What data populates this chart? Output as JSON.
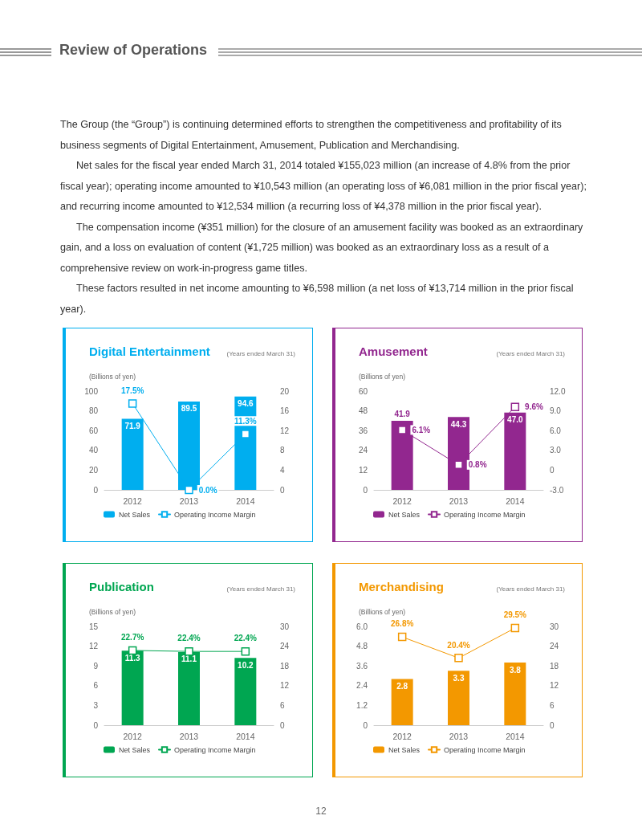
{
  "chart_data": [
    {
      "type": "bar",
      "title": "Digital Entertainment",
      "subtitle": "(Years ended March 31)",
      "ylabel": "(Billions of yen)",
      "annotations": [
        "Review of Operations",
        "The Group (the “Group”) is continuing determined efforts to strengthen the competitiveness and profitability of its business segments of Digital Entertainment, Amusement, Publication and Merchandising.",
        "Net sales for the fiscal year ended March 31, 2014 totaled ¥155,023 million (an increase of 4.8% from the prior fiscal year); operating income amounted to ¥10,543 million (an operating loss of ¥6,081 million in the prior fiscal year); and recurring income amounted to ¥12,534 million (a recurring loss of ¥4,378 million in the prior fiscal year).",
        "The compensation income (¥351 million) for the closure of an amusement facility was booked as an extraordinary gain, and a loss on evaluation of content (¥1,725 million) was booked as an extraordinary loss as a result of a comprehensive review on work-in-progress game titles.",
        "These factors resulted in net income amounting to ¥6,598 million (a net loss of ¥13,714 million in the prior fiscal year)."
      ],
      "categories": [
        "2012",
        "2013",
        "2014"
      ],
      "series": [
        {
          "name": "Net Sales",
          "color": "#00aeef",
          "values": [
            71.9,
            89.5,
            94.6
          ],
          "value_labels": [
            "71.9",
            "89.5",
            "94.6"
          ]
        },
        {
          "name": "Operating Income Margin",
          "type": "line",
          "axis": "y2",
          "color": "#00aeef",
          "values": [
            17.5,
            0.0,
            11.3
          ],
          "value_labels": [
            "17.5%",
            "0.0%",
            "11.3%"
          ]
        }
      ],
      "ylim": [
        0,
        100
      ],
      "yticks": [
        0,
        20,
        40,
        60,
        80,
        100
      ],
      "y2lim": [
        0,
        20
      ],
      "y2ticks": [
        0,
        4,
        8,
        12,
        16,
        20
      ],
      "legend": "bottom left",
      "marker": "square",
      "line_style": "solid"
    },
    {
      "type": "bar",
      "title": "Amusement",
      "subtitle": "(Years ended March 31)",
      "ylabel": "(Billions of yen)",
      "categories": [
        "2012",
        "2013",
        "2014"
      ],
      "series": [
        {
          "name": "Net Sales",
          "color": "#92278f",
          "values": [
            41.9,
            44.3,
            47.0
          ],
          "value_labels": [
            "41.9",
            "44.3",
            "47.0"
          ]
        },
        {
          "name": "Operating Income Margin",
          "type": "line",
          "axis": "y2",
          "color": "#92278f",
          "values": [
            6.1,
            0.8,
            9.6
          ],
          "value_labels": [
            "6.1%",
            "0.8%",
            "9.6%"
          ]
        }
      ],
      "ylim": [
        0,
        60
      ],
      "yticks": [
        0,
        12,
        24,
        36,
        48,
        60
      ],
      "y2lim": [
        -3,
        12
      ],
      "y2ticks": [
        {
          "value": -3,
          "label": "-3.0"
        },
        0,
        {
          "value": 3,
          "label": "3.0"
        },
        {
          "value": 6,
          "label": "6.0"
        },
        {
          "value": 9,
          "label": "9.0"
        },
        {
          "value": 12,
          "label": "12.0"
        }
      ],
      "legend": "bottom left",
      "marker": "square",
      "line_style": "solid"
    },
    {
      "type": "bar",
      "title": "Publication",
      "subtitle": "(Years ended March 31)",
      "ylabel": "(Billions of yen)",
      "categories": [
        "2012",
        "2013",
        "2014"
      ],
      "series": [
        {
          "name": "Net Sales",
          "color": "#00a651",
          "values": [
            11.3,
            11.1,
            10.2
          ],
          "value_labels": [
            "11.3",
            "11.1",
            "10.2"
          ]
        },
        {
          "name": "Operating Income Margin",
          "type": "line",
          "axis": "y2",
          "color": "#00a651",
          "values": [
            22.7,
            22.4,
            22.4
          ],
          "value_labels": [
            "22.7%",
            "22.4%",
            "22.4%"
          ]
        }
      ],
      "ylim": [
        0,
        15
      ],
      "yticks": [
        0,
        3,
        6,
        9,
        12,
        15
      ],
      "y2lim": [
        0,
        30
      ],
      "y2ticks": [
        0,
        6,
        12,
        18,
        24,
        30
      ],
      "legend": "bottom left",
      "marker": "square",
      "line_style": "solid"
    },
    {
      "type": "bar",
      "title": "Merchandising",
      "subtitle": "(Years ended March 31)",
      "ylabel": "(Billions of yen)",
      "annotations": [
        "12"
      ],
      "categories": [
        "2012",
        "2013",
        "2014"
      ],
      "series": [
        {
          "name": "Net Sales",
          "color": "#f39800",
          "values": [
            2.8,
            3.3,
            3.8
          ],
          "value_labels": [
            "2.8",
            "3.3",
            "3.8"
          ]
        },
        {
          "name": "Operating Income Margin",
          "type": "line",
          "axis": "y2",
          "color": "#f39800",
          "values": [
            26.8,
            20.4,
            29.5
          ],
          "value_labels": [
            "26.8%",
            "20.4%",
            "29.5%"
          ]
        }
      ],
      "ylim": [
        0,
        6
      ],
      "yticks": [
        0,
        1.2,
        2.4,
        3.6,
        4.8,
        {
          "value": 6,
          "label": "6.0"
        }
      ],
      "y2lim": [
        0,
        30
      ],
      "y2ticks": [
        0,
        6,
        12,
        18,
        24,
        30
      ],
      "legend": "bottom left",
      "marker": "square",
      "line_style": "solid"
    }
  ]
}
